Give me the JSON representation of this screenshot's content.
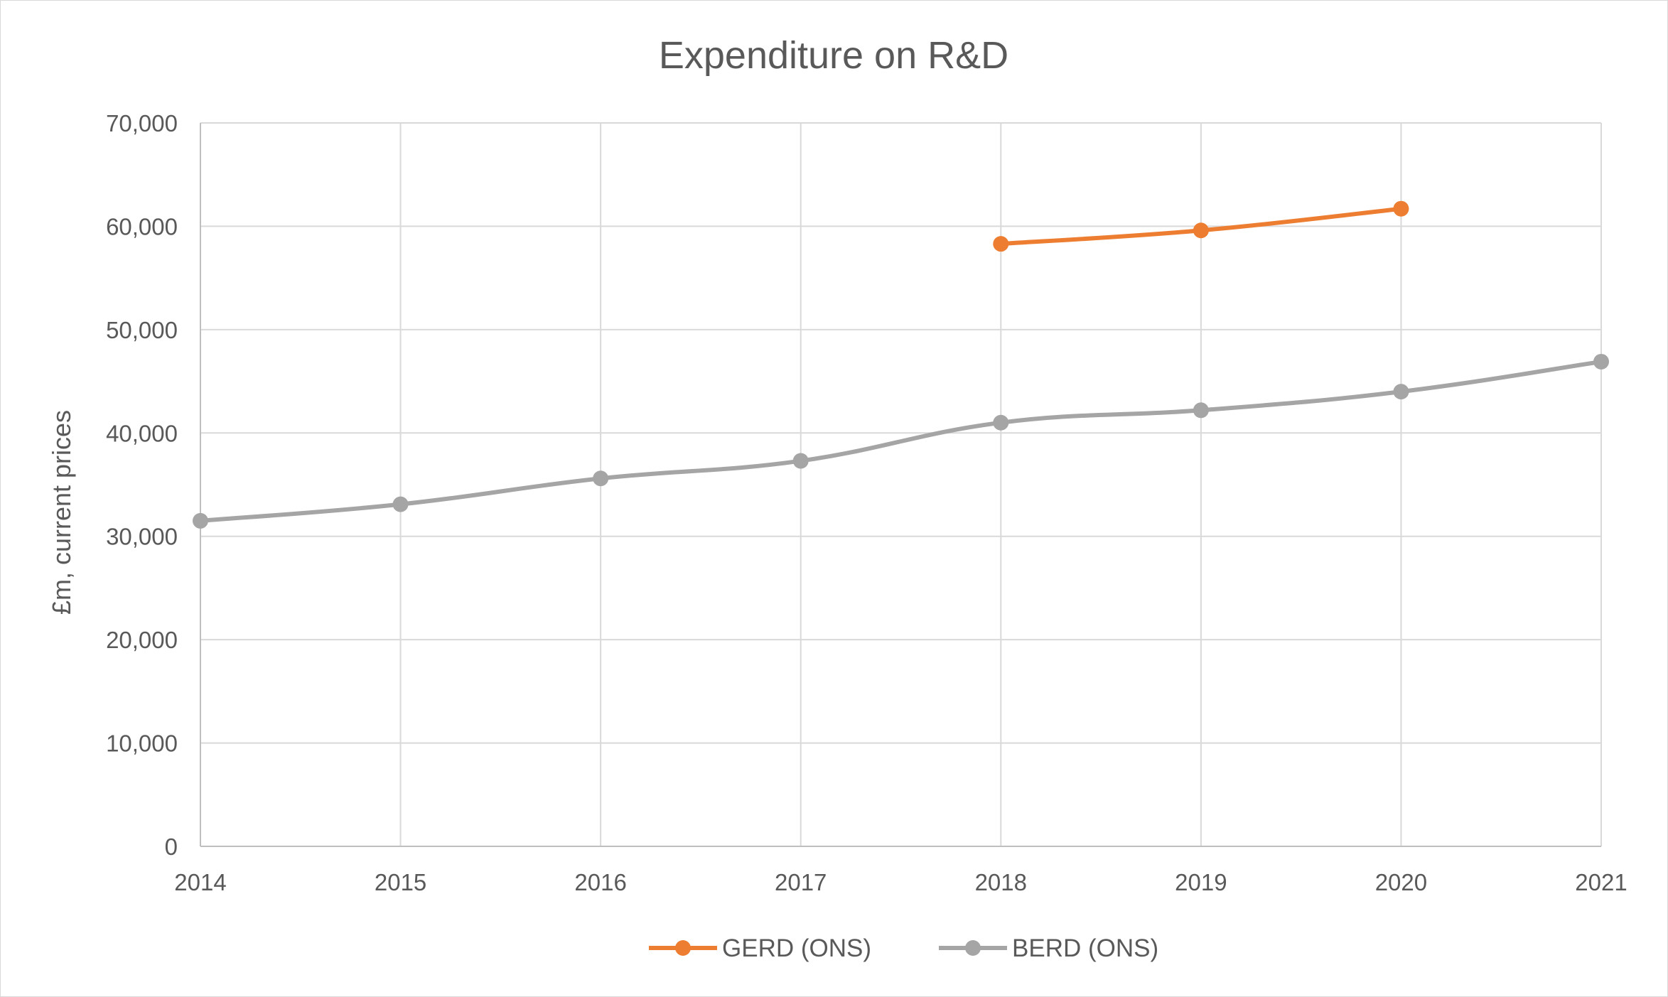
{
  "chart_data": {
    "type": "line",
    "title": "Expenditure on R&D",
    "xlabel": "",
    "ylabel": "£m, current prices",
    "x": [
      "2014",
      "2015",
      "2016",
      "2017",
      "2018",
      "2019",
      "2020",
      "2021"
    ],
    "ylim": [
      0,
      70000
    ],
    "yticks": [
      0,
      10000,
      20000,
      30000,
      40000,
      50000,
      60000,
      70000
    ],
    "ytick_labels": [
      "0",
      "10,000",
      "20,000",
      "30,000",
      "40,000",
      "50,000",
      "60,000",
      "70,000"
    ],
    "grid": true,
    "smooth": true,
    "legend_position": "bottom",
    "series": [
      {
        "name": "GERD (ONS)",
        "color": "#ed7d31",
        "values": [
          null,
          null,
          null,
          null,
          58300,
          59600,
          61700,
          null
        ]
      },
      {
        "name": "BERD (ONS)",
        "color": "#a5a5a5",
        "values": [
          31500,
          33100,
          35600,
          37300,
          41000,
          42200,
          44000,
          46900
        ]
      }
    ]
  }
}
